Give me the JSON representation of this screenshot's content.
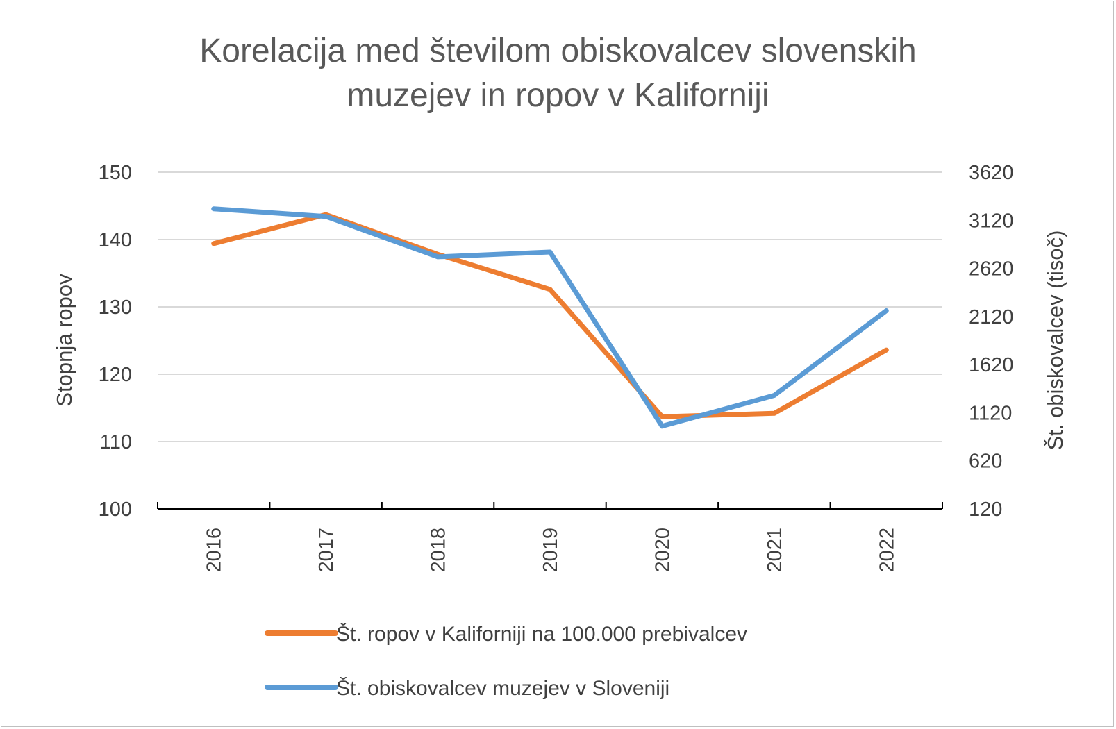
{
  "chart_data": {
    "type": "line",
    "title_lines": [
      "Korelacija med številom obiskovalcev slovenskih",
      "muzejev in ropov v Kaliforniji"
    ],
    "categories": [
      "2016",
      "2017",
      "2018",
      "2019",
      "2020",
      "2021",
      "2022"
    ],
    "ylabel_left": "Stopnja ropov",
    "ylabel_right": "Št. obiskovalcev (tisoč)",
    "y_left": {
      "min": 100,
      "max": 150,
      "ticks": [
        "150",
        "140",
        "130",
        "120",
        "110",
        "100"
      ]
    },
    "y_right": {
      "min": 120,
      "max": 3620,
      "ticks": [
        "3620",
        "3120",
        "2620",
        "2120",
        "1620",
        "1120",
        "620",
        "120"
      ]
    },
    "grid": true,
    "legend_position": "bottom",
    "series": [
      {
        "name": "Št. ropov  v Kaliforniji na 100.000 prebivalcev",
        "axis": "left",
        "color": "#ED7D31",
        "values": [
          139.4,
          143.7,
          137.8,
          132.6,
          113.7,
          114.2,
          123.6
        ]
      },
      {
        "name": "Št. obiskovalcev muzejev v Sloveniji",
        "axis": "right",
        "color": "#5B9BD5",
        "values": [
          3240,
          3160,
          2740,
          2790,
          980,
          1300,
          2180
        ]
      }
    ]
  }
}
